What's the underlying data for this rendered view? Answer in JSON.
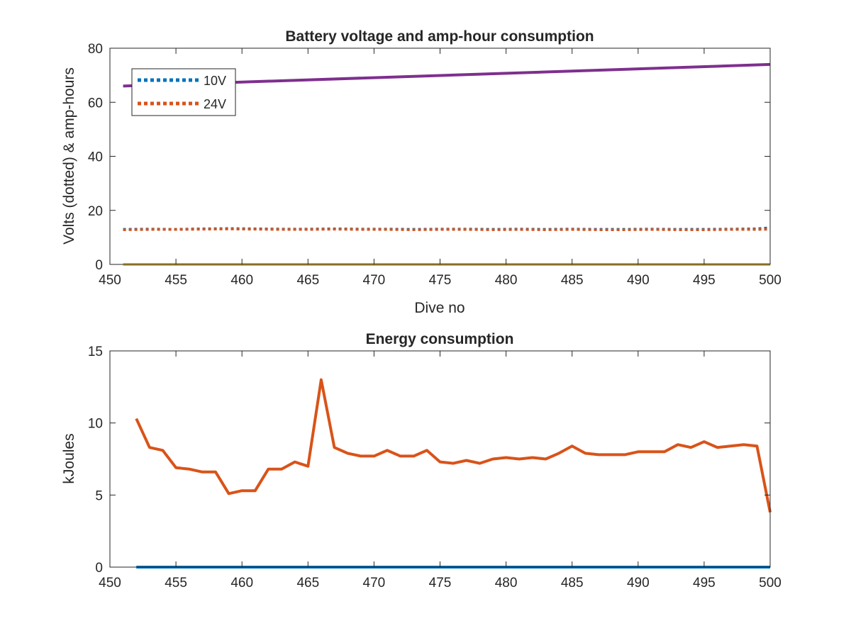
{
  "chart_data": [
    {
      "type": "line",
      "title": "Battery voltage and amp-hour consumption",
      "xlabel": "Dive no",
      "ylabel": "Volts (dotted) & amp-hours",
      "xlim": [
        450,
        500
      ],
      "ylim": [
        0,
        80
      ],
      "xticks": [
        450,
        455,
        460,
        465,
        470,
        475,
        480,
        485,
        490,
        495,
        500
      ],
      "yticks": [
        0,
        20,
        40,
        60,
        80
      ],
      "legend_position": "top-left",
      "series": [
        {
          "name": "10V",
          "style": "dotted",
          "color": "#0072BD",
          "x": [
            451,
            453,
            455,
            457,
            459,
            461,
            463,
            465,
            467,
            469,
            471,
            473,
            475,
            477,
            479,
            481,
            483,
            485,
            487,
            489,
            491,
            493,
            495,
            497,
            499,
            500
          ],
          "y": [
            13.0,
            13.1,
            13.0,
            13.2,
            13.3,
            13.2,
            13.1,
            13.1,
            13.2,
            13.1,
            13.1,
            13.0,
            13.1,
            13.1,
            13.0,
            13.1,
            13.0,
            13.1,
            13.0,
            13.0,
            13.1,
            13.0,
            13.0,
            13.1,
            13.2,
            13.6
          ]
        },
        {
          "name": "24V",
          "style": "dotted",
          "color": "#D95319",
          "x": [
            451,
            453,
            455,
            457,
            459,
            461,
            463,
            465,
            467,
            469,
            471,
            473,
            475,
            477,
            479,
            481,
            483,
            485,
            487,
            489,
            491,
            493,
            495,
            497,
            499,
            500
          ],
          "y": [
            12.8,
            12.9,
            12.9,
            13.0,
            13.1,
            13.0,
            12.9,
            12.9,
            13.0,
            12.9,
            12.9,
            12.8,
            12.9,
            12.9,
            12.8,
            12.9,
            12.8,
            12.9,
            12.8,
            12.8,
            12.9,
            12.8,
            12.8,
            12.9,
            12.9,
            13.0
          ]
        },
        {
          "style": "solid",
          "color": "#EDB120",
          "x": [
            451,
            500
          ],
          "y": [
            0,
            0
          ]
        },
        {
          "style": "solid",
          "color": "#7E2F8E",
          "x": [
            451,
            500
          ],
          "y": [
            66,
            74
          ]
        }
      ]
    },
    {
      "type": "line",
      "title": "Energy consumption",
      "xlabel": "",
      "ylabel": "kJoules",
      "xlim": [
        450,
        500
      ],
      "ylim": [
        0,
        15
      ],
      "xticks": [
        450,
        455,
        460,
        465,
        470,
        475,
        480,
        485,
        490,
        495,
        500
      ],
      "yticks": [
        0,
        5,
        10,
        15
      ],
      "series": [
        {
          "style": "solid",
          "color": "#0072BD",
          "x": [
            452,
            500
          ],
          "y": [
            0,
            0
          ]
        },
        {
          "style": "solid",
          "color": "#D95319",
          "x": [
            452,
            453,
            454,
            455,
            456,
            457,
            458,
            459,
            460,
            461,
            462,
            463,
            464,
            465,
            466,
            467,
            468,
            469,
            470,
            471,
            472,
            473,
            474,
            475,
            476,
            477,
            478,
            479,
            480,
            481,
            482,
            483,
            484,
            485,
            486,
            487,
            488,
            489,
            490,
            491,
            492,
            493,
            494,
            495,
            496,
            497,
            498,
            499,
            500
          ],
          "y": [
            10.3,
            8.3,
            8.1,
            6.9,
            6.8,
            6.6,
            6.6,
            5.1,
            5.3,
            5.3,
            6.8,
            6.8,
            7.3,
            7.0,
            13.0,
            8.3,
            7.9,
            7.7,
            7.7,
            8.1,
            7.7,
            7.7,
            8.1,
            7.3,
            7.2,
            7.4,
            7.2,
            7.5,
            7.6,
            7.5,
            7.6,
            7.5,
            7.9,
            8.4,
            7.9,
            7.8,
            7.8,
            7.8,
            8.0,
            8.0,
            8.0,
            8.5,
            8.3,
            8.7,
            8.3,
            8.4,
            8.5,
            8.4,
            3.8
          ]
        }
      ]
    }
  ]
}
